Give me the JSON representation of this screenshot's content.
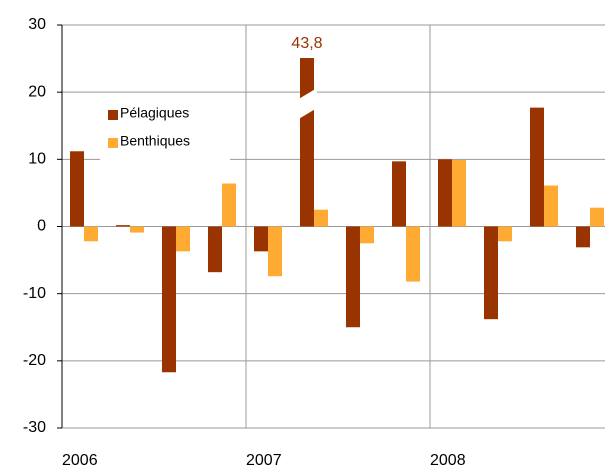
{
  "chart_data": {
    "type": "bar",
    "categories": [
      "2006",
      null,
      null,
      null,
      "2007",
      null,
      null,
      null,
      "2008",
      null,
      null,
      null
    ],
    "series": [
      {
        "name": "Pélagiques",
        "color": "#993300",
        "values": [
          11.2,
          0.2,
          -21.7,
          -6.8,
          -3.7,
          43.8,
          -15.0,
          9.7,
          10.0,
          -13.8,
          17.7,
          -3.1
        ],
        "value_labels": [
          null,
          null,
          null,
          null,
          null,
          "43,8",
          null,
          null,
          null,
          null,
          null,
          null
        ]
      },
      {
        "name": "Benthiques",
        "color": "#ffaa33",
        "values": [
          -2.2,
          -0.9,
          -3.7,
          6.4,
          -7.4,
          2.5,
          -2.5,
          -8.2,
          9.9,
          -2.2,
          6.1,
          2.8
        ]
      }
    ],
    "ylim": [
      -30,
      30
    ],
    "yticks": [
      -30,
      -20,
      -10,
      0,
      10,
      20,
      30
    ],
    "grid": true,
    "legend_loc": "upper left"
  }
}
